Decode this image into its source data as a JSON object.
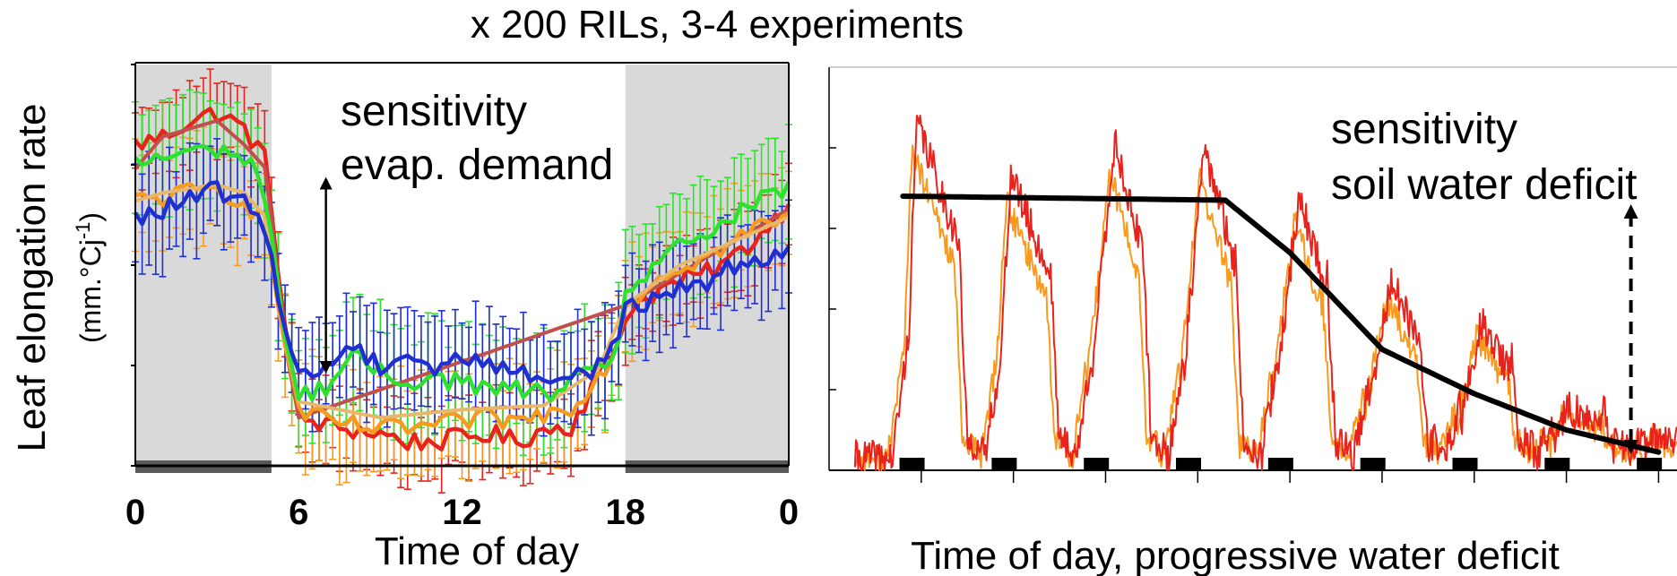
{
  "title": "x 200 RILs, 3-4 experiments",
  "y_label": "Leaf elongation rate",
  "y_unit": "(mm.°Cj-1)",
  "colors": {
    "night_shade": "#d9d9d9",
    "night_bar": "#595959",
    "red": "#e8231b",
    "orange": "#f79a1e",
    "green": "#2fe12f",
    "blue": "#1f2fd1",
    "darkred": "#c0504d",
    "tan": "#e7b86b",
    "model": "#000000"
  },
  "chart_data": [
    {
      "type": "line",
      "xlabel": "Time of day",
      "xlim": [
        0,
        24
      ],
      "x_ticks": [
        "0",
        "6",
        "12",
        "18",
        "0"
      ],
      "x_tick_values": [
        0,
        6,
        12,
        18,
        24
      ],
      "ylim": [
        0,
        1
      ],
      "night_periods": [
        [
          0,
          5
        ],
        [
          18,
          24
        ]
      ],
      "annotation": {
        "line1": "sensitivity",
        "line2": "evap. demand"
      },
      "arrow": {
        "x": 7,
        "y_from": 0.23,
        "y_to": 0.72,
        "style": "solid-double"
      },
      "series_keypoints": [
        {
          "color": "red",
          "points": [
            [
              0,
              0.8
            ],
            [
              1,
              0.82
            ],
            [
              2,
              0.86
            ],
            [
              3,
              0.88
            ],
            [
              4,
              0.84
            ],
            [
              4.8,
              0.76
            ],
            [
              5.5,
              0.35
            ],
            [
              6,
              0.12
            ],
            [
              7,
              0.1
            ],
            [
              8,
              0.09
            ],
            [
              9,
              0.08
            ],
            [
              10,
              0.06
            ],
            [
              11,
              0.06
            ],
            [
              12,
              0.07
            ],
            [
              13,
              0.08
            ],
            [
              14,
              0.06
            ],
            [
              15,
              0.09
            ],
            [
              16,
              0.1
            ],
            [
              17,
              0.22
            ],
            [
              17.7,
              0.3
            ],
            [
              18,
              0.38
            ],
            [
              19,
              0.43
            ],
            [
              20,
              0.46
            ],
            [
              21,
              0.48
            ],
            [
              22,
              0.52
            ],
            [
              23,
              0.58
            ],
            [
              24,
              0.65
            ]
          ],
          "err": 0.09
        },
        {
          "color": "darkred",
          "points": [
            [
              0,
              0.74
            ],
            [
              1,
              0.82
            ],
            [
              2,
              0.84
            ],
            [
              3,
              0.86
            ],
            [
              4,
              0.8
            ],
            [
              4.8,
              0.74
            ],
            [
              5.5,
              0.3
            ],
            [
              6,
              0.12
            ],
            [
              18,
              0.4
            ],
            [
              24,
              0.64
            ]
          ],
          "smooth": true,
          "err": 0
        },
        {
          "color": "orange",
          "points": [
            [
              0,
              0.66
            ],
            [
              1,
              0.67
            ],
            [
              2,
              0.68
            ],
            [
              3,
              0.69
            ],
            [
              4,
              0.66
            ],
            [
              4.8,
              0.6
            ],
            [
              5.5,
              0.3
            ],
            [
              6,
              0.14
            ],
            [
              7,
              0.11
            ],
            [
              9,
              0.09
            ],
            [
              11,
              0.1
            ],
            [
              12,
              0.11
            ],
            [
              13,
              0.12
            ],
            [
              14,
              0.11
            ],
            [
              15,
              0.13
            ],
            [
              16,
              0.15
            ],
            [
              17,
              0.22
            ],
            [
              17.7,
              0.3
            ],
            [
              18,
              0.4
            ],
            [
              19,
              0.46
            ],
            [
              20,
              0.5
            ],
            [
              21,
              0.52
            ],
            [
              22,
              0.56
            ],
            [
              23,
              0.6
            ],
            [
              24,
              0.62
            ]
          ],
          "err": 0.12
        },
        {
          "color": "tan",
          "points": [
            [
              0,
              0.66
            ],
            [
              1,
              0.68
            ],
            [
              2,
              0.69
            ],
            [
              3,
              0.7
            ],
            [
              4,
              0.68
            ],
            [
              4.8,
              0.62
            ],
            [
              5.5,
              0.32
            ],
            [
              6,
              0.16
            ],
            [
              9,
              0.12
            ],
            [
              12,
              0.14
            ],
            [
              15,
              0.15
            ],
            [
              17,
              0.24
            ],
            [
              18,
              0.4
            ],
            [
              20,
              0.5
            ],
            [
              22,
              0.56
            ],
            [
              24,
              0.62
            ]
          ],
          "smooth": true,
          "err": 0
        },
        {
          "color": "green",
          "points": [
            [
              0,
              0.75
            ],
            [
              1,
              0.77
            ],
            [
              2,
              0.78
            ],
            [
              3,
              0.79
            ],
            [
              4,
              0.77
            ],
            [
              4.8,
              0.68
            ],
            [
              5.5,
              0.32
            ],
            [
              6,
              0.17
            ],
            [
              7,
              0.2
            ],
            [
              8,
              0.27
            ],
            [
              9,
              0.23
            ],
            [
              10,
              0.21
            ],
            [
              11,
              0.22
            ],
            [
              12,
              0.21
            ],
            [
              13,
              0.19
            ],
            [
              14,
              0.19
            ],
            [
              15,
              0.18
            ],
            [
              16,
              0.2
            ],
            [
              17,
              0.24
            ],
            [
              17.7,
              0.3
            ],
            [
              18,
              0.42
            ],
            [
              19,
              0.5
            ],
            [
              20,
              0.54
            ],
            [
              21,
              0.58
            ],
            [
              22,
              0.62
            ],
            [
              23,
              0.66
            ],
            [
              24,
              0.69
            ]
          ],
          "err": 0.13
        },
        {
          "color": "blue",
          "points": [
            [
              0,
              0.61
            ],
            [
              1,
              0.64
            ],
            [
              2,
              0.66
            ],
            [
              3,
              0.69
            ],
            [
              4,
              0.65
            ],
            [
              4.8,
              0.6
            ],
            [
              5.5,
              0.34
            ],
            [
              6,
              0.22
            ],
            [
              7,
              0.25
            ],
            [
              8,
              0.3
            ],
            [
              9,
              0.25
            ],
            [
              10,
              0.28
            ],
            [
              11,
              0.24
            ],
            [
              12,
              0.27
            ],
            [
              13,
              0.26
            ],
            [
              14,
              0.23
            ],
            [
              15,
              0.22
            ],
            [
              16,
              0.22
            ],
            [
              17,
              0.25
            ],
            [
              17.7,
              0.32
            ],
            [
              18,
              0.38
            ],
            [
              19,
              0.42
            ],
            [
              20,
              0.44
            ],
            [
              21,
              0.46
            ],
            [
              22,
              0.5
            ],
            [
              23,
              0.52
            ],
            [
              24,
              0.55
            ]
          ],
          "err": 0.12
        }
      ]
    },
    {
      "type": "line",
      "xlabel": "Time of day, progressive water deficit",
      "xlim": [
        0,
        9.2
      ],
      "ylim": [
        0,
        1
      ],
      "annotation": {
        "line1": "sensitivity",
        "line2": "soil water deficit"
      },
      "arrow": {
        "x": 8.7,
        "y_from": 0.04,
        "y_to": 0.66,
        "style": "dashed-double"
      },
      "night_markers": [
        0.9,
        1.9,
        2.9,
        3.9,
        4.9,
        5.9,
        6.9,
        7.9,
        8.9
      ],
      "model_line": [
        [
          0.8,
          0.68
        ],
        [
          4.3,
          0.67
        ],
        [
          5.0,
          0.54
        ],
        [
          6.0,
          0.3
        ],
        [
          7.0,
          0.19
        ],
        [
          8.0,
          0.1
        ],
        [
          9.0,
          0.045
        ]
      ],
      "cycles": [
        {
          "start": 0.8,
          "peak": 0.83,
          "rise": 0.1
        },
        {
          "start": 1.8,
          "peak": 0.7,
          "rise": 0.12
        },
        {
          "start": 2.8,
          "peak": 0.78,
          "rise": 0.25
        },
        {
          "start": 3.8,
          "peak": 0.76,
          "rise": 0.22
        },
        {
          "start": 4.8,
          "peak": 0.65,
          "rise": 0.25
        },
        {
          "start": 5.8,
          "peak": 0.45,
          "rise": 0.25
        },
        {
          "start": 6.8,
          "peak": 0.35,
          "rise": 0.22
        },
        {
          "start": 7.8,
          "peak": 0.15,
          "rise": 0.16
        },
        {
          "start": 8.8,
          "peak": 0.08,
          "rise": 0.12
        }
      ]
    }
  ]
}
